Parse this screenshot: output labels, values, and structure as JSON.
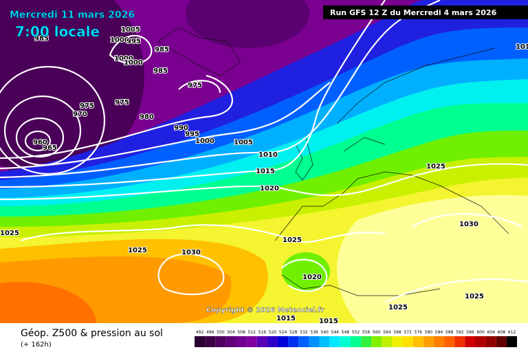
{
  "header": {
    "date": "Mercredi 11 mars 2026",
    "time": "7:00 locale",
    "run": "Run GFS 12 Z du Mercredi 4 mars 2026"
  },
  "isobar_labels": [
    "1005",
    "1000",
    "995",
    "985",
    "985",
    "1000",
    "1000",
    "985",
    "975",
    "975",
    "975",
    "970",
    "980",
    "990",
    "995",
    "1000",
    "1005",
    "960",
    "965",
    "1010",
    "1015",
    "1020",
    "1025",
    "1030",
    "1025",
    "1025",
    "1030",
    "1020",
    "1025",
    "1025",
    "1015",
    "1015",
    "1025",
    "101"
  ],
  "copyright": "Copyright © 2026 Meteociel.fr",
  "legend": {
    "title": "Géop. Z500 & pression au sol",
    "lead": "(+ 162h)",
    "scale": [
      492,
      496,
      500,
      504,
      508,
      512,
      516,
      520,
      524,
      528,
      532,
      536,
      540,
      544,
      548,
      552,
      556,
      560,
      564,
      568,
      572,
      576,
      580,
      584,
      588,
      592,
      596,
      600,
      604,
      608,
      612
    ],
    "colors": [
      "#2a0030",
      "#3c0045",
      "#500060",
      "#60007a",
      "#700090",
      "#8000a0",
      "#5a00b4",
      "#3000c8",
      "#0000d8",
      "#0030f0",
      "#0060ff",
      "#0090ff",
      "#00c0ff",
      "#00e8ff",
      "#00ffd0",
      "#00ff90",
      "#30f040",
      "#80f000",
      "#c0f000",
      "#f0f000",
      "#ffe000",
      "#ffc000",
      "#ffa000",
      "#ff8000",
      "#ff6000",
      "#f03000",
      "#d00000",
      "#b00000",
      "#900000",
      "#600000",
      "#000000"
    ]
  }
}
